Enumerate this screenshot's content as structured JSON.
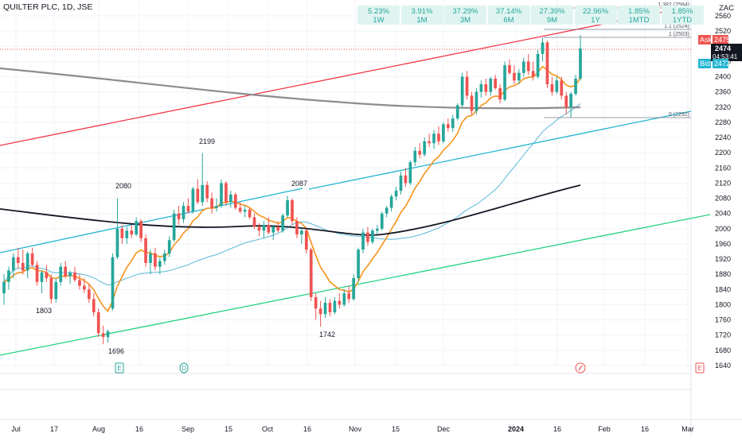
{
  "header": {
    "symbol": "QUILTER PLC, 1D, JSE",
    "currency": "ZAC"
  },
  "performance": [
    {
      "value": "5.23%",
      "period": "1W"
    },
    {
      "value": "3.91%",
      "period": "1M"
    },
    {
      "value": "37.29%",
      "period": "3M"
    },
    {
      "value": "37.14%",
      "period": "6M"
    },
    {
      "value": "27.39%",
      "period": "9M"
    },
    {
      "value": "22.96%",
      "period": "1Y"
    },
    {
      "value": "1.85%",
      "period": "1MTD"
    },
    {
      "value": "1.85%",
      "period": "1YTD"
    }
  ],
  "price_tags": {
    "ask_label": "Ask",
    "ask_value": "2475",
    "last_value": "2474",
    "countdown": "04:53:41",
    "bid_label": "Bid",
    "bid_value": "2472"
  },
  "fib_levels": [
    {
      "label": "1.382 (2584)",
      "value": 2584
    },
    {
      "label": "1.1 (2524)",
      "value": 2524
    },
    {
      "label": "1 (2503)",
      "value": 2503
    },
    {
      "label": "0 (2292)",
      "value": 2292
    }
  ],
  "markers": [
    "E",
    "D",
    "E"
  ],
  "colors": {
    "up": "#26a69a",
    "down": "#ef5350",
    "ema": "#f7931a",
    "sma50": "#5ab8d6",
    "sma200": "#131722",
    "longma": "#8c8c8c",
    "red_line": "#f23645",
    "teal_line": "#22b5d0",
    "green_line": "#25d182"
  },
  "chart_data": {
    "type": "candlestick",
    "title": "QUILTER PLC, 1D, JSE",
    "ylim": [
      1620,
      2610
    ],
    "y_ticks": [
      2560,
      2520,
      2480,
      2440,
      2400,
      2360,
      2320,
      2280,
      2240,
      2200,
      2160,
      2120,
      2080,
      2040,
      2000,
      1960,
      1920,
      1880,
      1840,
      1800,
      1760,
      1720,
      1680,
      1640
    ],
    "x_ticks": [
      "Jul",
      "17",
      "Aug",
      "16",
      "Sep",
      "15",
      "Oct",
      "16",
      "Nov",
      "15",
      "Dec",
      "2024",
      "16",
      "Feb",
      "16",
      "Mar"
    ],
    "annotations": [
      {
        "text": "2080",
        "value": 2080
      },
      {
        "text": "1803",
        "value": 1803
      },
      {
        "text": "1696",
        "value": 1696
      },
      {
        "text": "2199",
        "value": 2199
      },
      {
        "text": "2087",
        "value": 2087
      },
      {
        "text": "1742",
        "value": 1742
      }
    ],
    "candles": [
      {
        "o": 1830,
        "h": 1880,
        "l": 1800,
        "c": 1860
      },
      {
        "o": 1860,
        "h": 1900,
        "l": 1840,
        "c": 1890
      },
      {
        "o": 1890,
        "h": 1935,
        "l": 1870,
        "c": 1925
      },
      {
        "o": 1925,
        "h": 1950,
        "l": 1895,
        "c": 1910
      },
      {
        "o": 1910,
        "h": 1945,
        "l": 1880,
        "c": 1890
      },
      {
        "o": 1890,
        "h": 1940,
        "l": 1870,
        "c": 1935
      },
      {
        "o": 1935,
        "h": 1950,
        "l": 1900,
        "c": 1905
      },
      {
        "o": 1905,
        "h": 1915,
        "l": 1850,
        "c": 1860
      },
      {
        "o": 1860,
        "h": 1890,
        "l": 1830,
        "c": 1885
      },
      {
        "o": 1885,
        "h": 1905,
        "l": 1860,
        "c": 1870
      },
      {
        "o": 1870,
        "h": 1880,
        "l": 1803,
        "c": 1815
      },
      {
        "o": 1815,
        "h": 1870,
        "l": 1805,
        "c": 1860
      },
      {
        "o": 1860,
        "h": 1910,
        "l": 1850,
        "c": 1900
      },
      {
        "o": 1900,
        "h": 1915,
        "l": 1870,
        "c": 1875
      },
      {
        "o": 1875,
        "h": 1890,
        "l": 1855,
        "c": 1885
      },
      {
        "o": 1885,
        "h": 1900,
        "l": 1860,
        "c": 1865
      },
      {
        "o": 1865,
        "h": 1880,
        "l": 1840,
        "c": 1850
      },
      {
        "o": 1850,
        "h": 1870,
        "l": 1830,
        "c": 1840
      },
      {
        "o": 1840,
        "h": 1855,
        "l": 1805,
        "c": 1815
      },
      {
        "o": 1815,
        "h": 1830,
        "l": 1770,
        "c": 1780
      },
      {
        "o": 1780,
        "h": 1790,
        "l": 1715,
        "c": 1725
      },
      {
        "o": 1725,
        "h": 1745,
        "l": 1696,
        "c": 1715
      },
      {
        "o": 1715,
        "h": 1735,
        "l": 1700,
        "c": 1730
      },
      {
        "o": 1790,
        "h": 1935,
        "l": 1785,
        "c": 1925
      },
      {
        "o": 1925,
        "h": 2080,
        "l": 1920,
        "c": 2000
      },
      {
        "o": 2000,
        "h": 2010,
        "l": 1960,
        "c": 1975
      },
      {
        "o": 1975,
        "h": 2005,
        "l": 1960,
        "c": 1995
      },
      {
        "o": 1995,
        "h": 2010,
        "l": 1975,
        "c": 1985
      },
      {
        "o": 1985,
        "h": 2030,
        "l": 1980,
        "c": 2020
      },
      {
        "o": 2020,
        "h": 2025,
        "l": 1965,
        "c": 1975
      },
      {
        "o": 1975,
        "h": 1985,
        "l": 1900,
        "c": 1910
      },
      {
        "o": 1910,
        "h": 1945,
        "l": 1880,
        "c": 1935
      },
      {
        "o": 1935,
        "h": 1950,
        "l": 1890,
        "c": 1900
      },
      {
        "o": 1900,
        "h": 1925,
        "l": 1880,
        "c": 1915
      },
      {
        "o": 1915,
        "h": 1945,
        "l": 1905,
        "c": 1935
      },
      {
        "o": 1935,
        "h": 1980,
        "l": 1925,
        "c": 1970
      },
      {
        "o": 1970,
        "h": 2050,
        "l": 1965,
        "c": 2040
      },
      {
        "o": 2040,
        "h": 2060,
        "l": 2010,
        "c": 2025
      },
      {
        "o": 2025,
        "h": 2070,
        "l": 2015,
        "c": 2060
      },
      {
        "o": 2060,
        "h": 2080,
        "l": 2040,
        "c": 2045
      },
      {
        "o": 2045,
        "h": 2110,
        "l": 2040,
        "c": 2105
      },
      {
        "o": 2105,
        "h": 2130,
        "l": 2065,
        "c": 2070
      },
      {
        "o": 2070,
        "h": 2199,
        "l": 2060,
        "c": 2115
      },
      {
        "o": 2115,
        "h": 2125,
        "l": 2070,
        "c": 2080
      },
      {
        "o": 2080,
        "h": 2095,
        "l": 2040,
        "c": 2055
      },
      {
        "o": 2055,
        "h": 2080,
        "l": 2045,
        "c": 2060
      },
      {
        "o": 2060,
        "h": 2130,
        "l": 2055,
        "c": 2120
      },
      {
        "o": 2120,
        "h": 2125,
        "l": 2060,
        "c": 2070
      },
      {
        "o": 2070,
        "h": 2100,
        "l": 2055,
        "c": 2090
      },
      {
        "o": 2090,
        "h": 2095,
        "l": 2050,
        "c": 2055
      },
      {
        "o": 2055,
        "h": 2070,
        "l": 2040,
        "c": 2045
      },
      {
        "o": 2045,
        "h": 2060,
        "l": 2030,
        "c": 2050
      },
      {
        "o": 2050,
        "h": 2055,
        "l": 2025,
        "c": 2030
      },
      {
        "o": 2030,
        "h": 2040,
        "l": 2000,
        "c": 2005
      },
      {
        "o": 2005,
        "h": 2015,
        "l": 1980,
        "c": 1995
      },
      {
        "o": 1995,
        "h": 2020,
        "l": 1975,
        "c": 2010
      },
      {
        "o": 2010,
        "h": 2030,
        "l": 1985,
        "c": 1990
      },
      {
        "o": 1990,
        "h": 2010,
        "l": 1970,
        "c": 2005
      },
      {
        "o": 2005,
        "h": 2020,
        "l": 1990,
        "c": 1995
      },
      {
        "o": 1995,
        "h": 2040,
        "l": 1990,
        "c": 2035
      },
      {
        "o": 2035,
        "h": 2087,
        "l": 2030,
        "c": 2075
      },
      {
        "o": 2075,
        "h": 2080,
        "l": 2010,
        "c": 2020
      },
      {
        "o": 2020,
        "h": 2030,
        "l": 1975,
        "c": 1985
      },
      {
        "o": 1985,
        "h": 2000,
        "l": 1960,
        "c": 1995
      },
      {
        "o": 1995,
        "h": 2000,
        "l": 1935,
        "c": 1945
      },
      {
        "o": 1945,
        "h": 1950,
        "l": 1810,
        "c": 1820
      },
      {
        "o": 1820,
        "h": 1830,
        "l": 1760,
        "c": 1790
      },
      {
        "o": 1790,
        "h": 1810,
        "l": 1742,
        "c": 1775
      },
      {
        "o": 1775,
        "h": 1820,
        "l": 1765,
        "c": 1805
      },
      {
        "o": 1805,
        "h": 1815,
        "l": 1770,
        "c": 1780
      },
      {
        "o": 1780,
        "h": 1820,
        "l": 1775,
        "c": 1810
      },
      {
        "o": 1810,
        "h": 1830,
        "l": 1790,
        "c": 1800
      },
      {
        "o": 1800,
        "h": 1840,
        "l": 1795,
        "c": 1830
      },
      {
        "o": 1830,
        "h": 1850,
        "l": 1805,
        "c": 1815
      },
      {
        "o": 1815,
        "h": 1880,
        "l": 1810,
        "c": 1870
      },
      {
        "o": 1870,
        "h": 1950,
        "l": 1860,
        "c": 1945
      },
      {
        "o": 1945,
        "h": 2000,
        "l": 1935,
        "c": 1990
      },
      {
        "o": 1990,
        "h": 2005,
        "l": 1955,
        "c": 1965
      },
      {
        "o": 1965,
        "h": 2000,
        "l": 1960,
        "c": 1995
      },
      {
        "o": 1995,
        "h": 2010,
        "l": 1985,
        "c": 2000
      },
      {
        "o": 2000,
        "h": 2045,
        "l": 1995,
        "c": 2040
      },
      {
        "o": 2040,
        "h": 2060,
        "l": 2030,
        "c": 2055
      },
      {
        "o": 2055,
        "h": 2090,
        "l": 2045,
        "c": 2085
      },
      {
        "o": 2085,
        "h": 2110,
        "l": 2075,
        "c": 2100
      },
      {
        "o": 2100,
        "h": 2150,
        "l": 2090,
        "c": 2140
      },
      {
        "o": 2140,
        "h": 2160,
        "l": 2110,
        "c": 2120
      },
      {
        "o": 2120,
        "h": 2180,
        "l": 2115,
        "c": 2175
      },
      {
        "o": 2175,
        "h": 2215,
        "l": 2165,
        "c": 2205
      },
      {
        "o": 2205,
        "h": 2225,
        "l": 2185,
        "c": 2195
      },
      {
        "o": 2195,
        "h": 2240,
        "l": 2190,
        "c": 2230
      },
      {
        "o": 2230,
        "h": 2250,
        "l": 2215,
        "c": 2225
      },
      {
        "o": 2225,
        "h": 2260,
        "l": 2210,
        "c": 2250
      },
      {
        "o": 2250,
        "h": 2270,
        "l": 2220,
        "c": 2230
      },
      {
        "o": 2230,
        "h": 2280,
        "l": 2225,
        "c": 2275
      },
      {
        "o": 2275,
        "h": 2290,
        "l": 2255,
        "c": 2265
      },
      {
        "o": 2265,
        "h": 2300,
        "l": 2255,
        "c": 2290
      },
      {
        "o": 2290,
        "h": 2330,
        "l": 2285,
        "c": 2325
      },
      {
        "o": 2325,
        "h": 2410,
        "l": 2320,
        "c": 2400
      },
      {
        "o": 2400,
        "h": 2415,
        "l": 2340,
        "c": 2350
      },
      {
        "o": 2350,
        "h": 2360,
        "l": 2300,
        "c": 2310
      },
      {
        "o": 2310,
        "h": 2370,
        "l": 2300,
        "c": 2360
      },
      {
        "o": 2360,
        "h": 2390,
        "l": 2345,
        "c": 2380
      },
      {
        "o": 2380,
        "h": 2395,
        "l": 2350,
        "c": 2360
      },
      {
        "o": 2360,
        "h": 2400,
        "l": 2350,
        "c": 2395
      },
      {
        "o": 2395,
        "h": 2405,
        "l": 2365,
        "c": 2370
      },
      {
        "o": 2370,
        "h": 2380,
        "l": 2330,
        "c": 2340
      },
      {
        "o": 2340,
        "h": 2440,
        "l": 2335,
        "c": 2430
      },
      {
        "o": 2430,
        "h": 2445,
        "l": 2405,
        "c": 2410
      },
      {
        "o": 2410,
        "h": 2430,
        "l": 2380,
        "c": 2390
      },
      {
        "o": 2390,
        "h": 2420,
        "l": 2380,
        "c": 2410
      },
      {
        "o": 2410,
        "h": 2450,
        "l": 2400,
        "c": 2440
      },
      {
        "o": 2440,
        "h": 2460,
        "l": 2405,
        "c": 2415
      },
      {
        "o": 2415,
        "h": 2440,
        "l": 2390,
        "c": 2400
      },
      {
        "o": 2400,
        "h": 2470,
        "l": 2395,
        "c": 2460
      },
      {
        "o": 2460,
        "h": 2503,
        "l": 2440,
        "c": 2490
      },
      {
        "o": 2490,
        "h": 2495,
        "l": 2370,
        "c": 2380
      },
      {
        "o": 2380,
        "h": 2400,
        "l": 2350,
        "c": 2360
      },
      {
        "o": 2360,
        "h": 2400,
        "l": 2355,
        "c": 2390
      },
      {
        "o": 2390,
        "h": 2400,
        "l": 2340,
        "c": 2350
      },
      {
        "o": 2350,
        "h": 2360,
        "l": 2300,
        "c": 2320
      },
      {
        "o": 2320,
        "h": 2360,
        "l": 2292,
        "c": 2355
      },
      {
        "o": 2355,
        "h": 2405,
        "l": 2350,
        "c": 2395
      },
      {
        "o": 2395,
        "h": 2510,
        "l": 2390,
        "c": 2474
      }
    ]
  }
}
